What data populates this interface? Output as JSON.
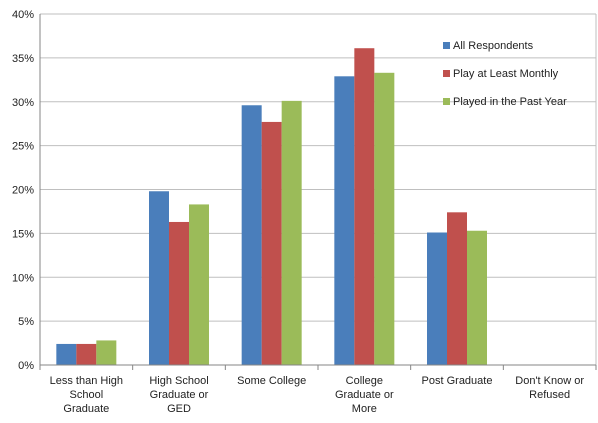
{
  "chart_data": {
    "type": "bar",
    "categories": [
      [
        "Less than High",
        "School",
        "Graduate"
      ],
      [
        "High School",
        "Graduate or",
        "GED"
      ],
      [
        "Some College"
      ],
      [
        "College",
        "Graduate or",
        "More"
      ],
      [
        "Post Graduate"
      ],
      [
        "Don't Know or",
        "Refused"
      ]
    ],
    "series": [
      {
        "name": "All Respondents",
        "color": "#4A7EBB",
        "values": [
          2.4,
          19.8,
          29.6,
          32.9,
          15.1,
          0
        ]
      },
      {
        "name": "Play at Least Monthly",
        "color": "#C0504D",
        "values": [
          2.4,
          16.3,
          27.7,
          36.1,
          17.4,
          0
        ]
      },
      {
        "name": "Played in the Past Year",
        "color": "#9BBB59",
        "values": [
          2.8,
          18.3,
          30.1,
          33.3,
          15.3,
          0
        ]
      }
    ],
    "ylim": [
      0,
      40
    ],
    "yticks": [
      0,
      5,
      10,
      15,
      20,
      25,
      30,
      35,
      40
    ],
    "ytick_format": "%",
    "grid": true,
    "legend_position": "top-right"
  }
}
